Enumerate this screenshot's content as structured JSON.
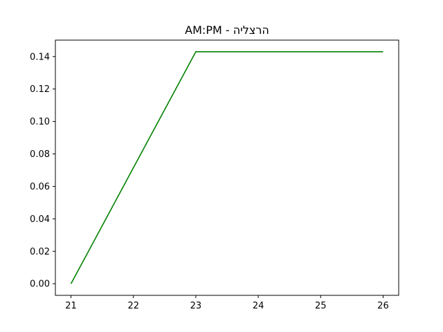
{
  "chart_data": {
    "type": "line",
    "title": "AM:PM - הרצליה",
    "xlabel": "",
    "ylabel": "",
    "x": [
      21,
      22,
      23,
      24,
      25,
      26
    ],
    "series": [
      {
        "values": [
          0.0,
          0.0715,
          0.143,
          0.143,
          0.143,
          0.143
        ],
        "color": "#008000"
      }
    ],
    "xlim": [
      20.75,
      26.25
    ],
    "ylim": [
      -0.00715,
      0.15015
    ],
    "xticks": [
      21,
      22,
      23,
      24,
      25,
      26
    ],
    "xtick_labels": [
      "21",
      "22",
      "23",
      "24",
      "25",
      "26"
    ],
    "yticks": [
      0.0,
      0.02,
      0.04,
      0.06,
      0.08,
      0.1,
      0.12,
      0.14
    ],
    "ytick_labels": [
      "0.00",
      "0.02",
      "0.04",
      "0.06",
      "0.08",
      "0.10",
      "0.12",
      "0.14"
    ],
    "grid": false,
    "legend": "none"
  }
}
